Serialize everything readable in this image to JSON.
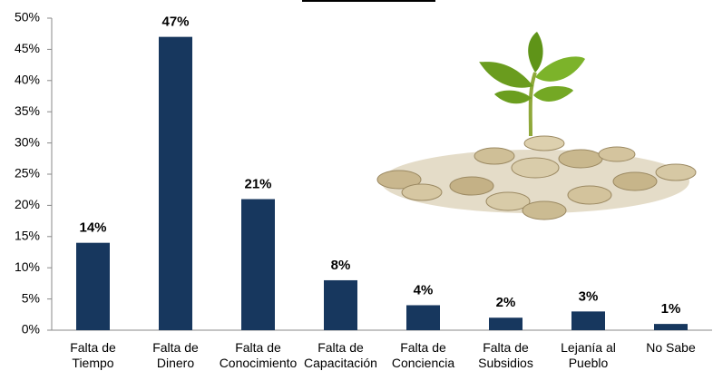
{
  "chart_data": {
    "type": "bar",
    "categories": [
      "Falta de\nTiempo",
      "Falta de\nDinero",
      "Falta de\nConocimiento",
      "Falta de\nCapacitación",
      "Falta de\nConciencia",
      "Falta de\nSubsidios",
      "Lejanía al\nPueblo",
      "No Sabe"
    ],
    "values": [
      14,
      47,
      21,
      8,
      4,
      2,
      3,
      1
    ],
    "value_labels": [
      "14%",
      "47%",
      "21%",
      "8%",
      "4%",
      "2%",
      "3%",
      "1%"
    ],
    "color": "#17375e",
    "ylim": [
      0,
      50
    ],
    "yticks": [
      {
        "value": 0,
        "label": "0%"
      },
      {
        "value": 5,
        "label": "5%"
      },
      {
        "value": 10,
        "label": "10%"
      },
      {
        "value": 15,
        "label": "15%"
      },
      {
        "value": 20,
        "label": "20%"
      },
      {
        "value": 25,
        "label": "25%"
      },
      {
        "value": 30,
        "label": "30%"
      },
      {
        "value": 35,
        "label": "35%"
      },
      {
        "value": 40,
        "label": "40%"
      },
      {
        "value": 45,
        "label": "45%"
      },
      {
        "value": 50,
        "label": "50%"
      }
    ]
  }
}
